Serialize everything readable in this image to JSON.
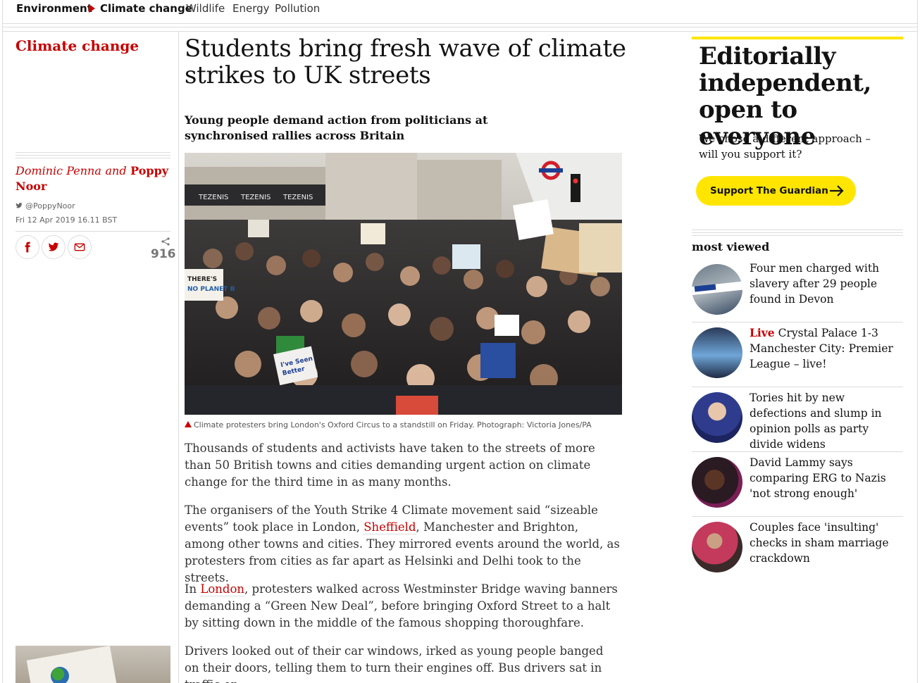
{
  "subnav": {
    "items": [
      {
        "label": "Environment"
      },
      {
        "label": "Climate change"
      },
      {
        "label": "Wildlife"
      },
      {
        "label": "Energy"
      },
      {
        "label": "Pollution"
      }
    ]
  },
  "article": {
    "section": "Climate change",
    "headline": "Students bring fresh wave of climate strikes to UK streets",
    "standfirst": "Young people demand action from politicians at synchronised rallies across Britain",
    "byline": {
      "author1": "Dominic Penna",
      "conjunction": "and",
      "author2": "Poppy Noor"
    },
    "twitter_handle": "@PoppyNoor",
    "dateline": "Fri 12 Apr 2019 16.11 BST",
    "share_count": "916",
    "image_caption": "Climate protesters bring London's Oxford Circus to a standstill on Friday. Photograph: Victoria Jones/PA",
    "paragraphs": {
      "p1": "Thousands of students and activists have taken to the streets of more than 50 British towns and cities demanding urgent action on climate change for the third time in as many months.",
      "p2_a": "The organisers of the Youth Strike 4 Climate movement said “sizeable events” took place in London, ",
      "p2_link": "Sheffield",
      "p2_b": ", Manchester and Brighton, among other towns and cities. They mirrored events around the world, as protesters from cities as far apart as Helsinki and Delhi took to the streets.",
      "p3_a": "In ",
      "p3_link": "London",
      "p3_b": ", protesters walked across Westminster Bridge waving banners demanding a “Green New Deal”, before bringing Oxford Street to a halt by sitting down in the middle of the famous shopping thoroughfare.",
      "p4": "Drivers looked out of their car windows, irked as young people banged on their doors, telling them to turn their engines off. Bus drivers sat in traffic on"
    },
    "photo_signs": {
      "sign1": "THERE'S NO PLANET B",
      "sign2": "I've Seen Better"
    }
  },
  "support": {
    "headline": "Editorially independent, open to everyone",
    "subtext": "We chose a different approach – will you support it?",
    "button_label": "Support The Guardian",
    "accent": "#ffe500"
  },
  "most_viewed": {
    "title": "most viewed",
    "items": [
      {
        "live": "",
        "text": "Four men charged with slavery after 29 people found in Devon"
      },
      {
        "live": "Live",
        "text": "Crystal Palace 1-3 Manchester City: Premier League – live!"
      },
      {
        "live": "",
        "text": "Tories hit by new defections and slump in opinion polls as party divide widens"
      },
      {
        "live": "",
        "text": "David Lammy says comparing ERG to Nazis 'not strong enough'"
      },
      {
        "live": "",
        "text": "Couples face 'insulting' checks in sham marriage crackdown"
      }
    ]
  },
  "colors": {
    "brand_red": "#c70000",
    "support_yellow": "#ffe500"
  }
}
